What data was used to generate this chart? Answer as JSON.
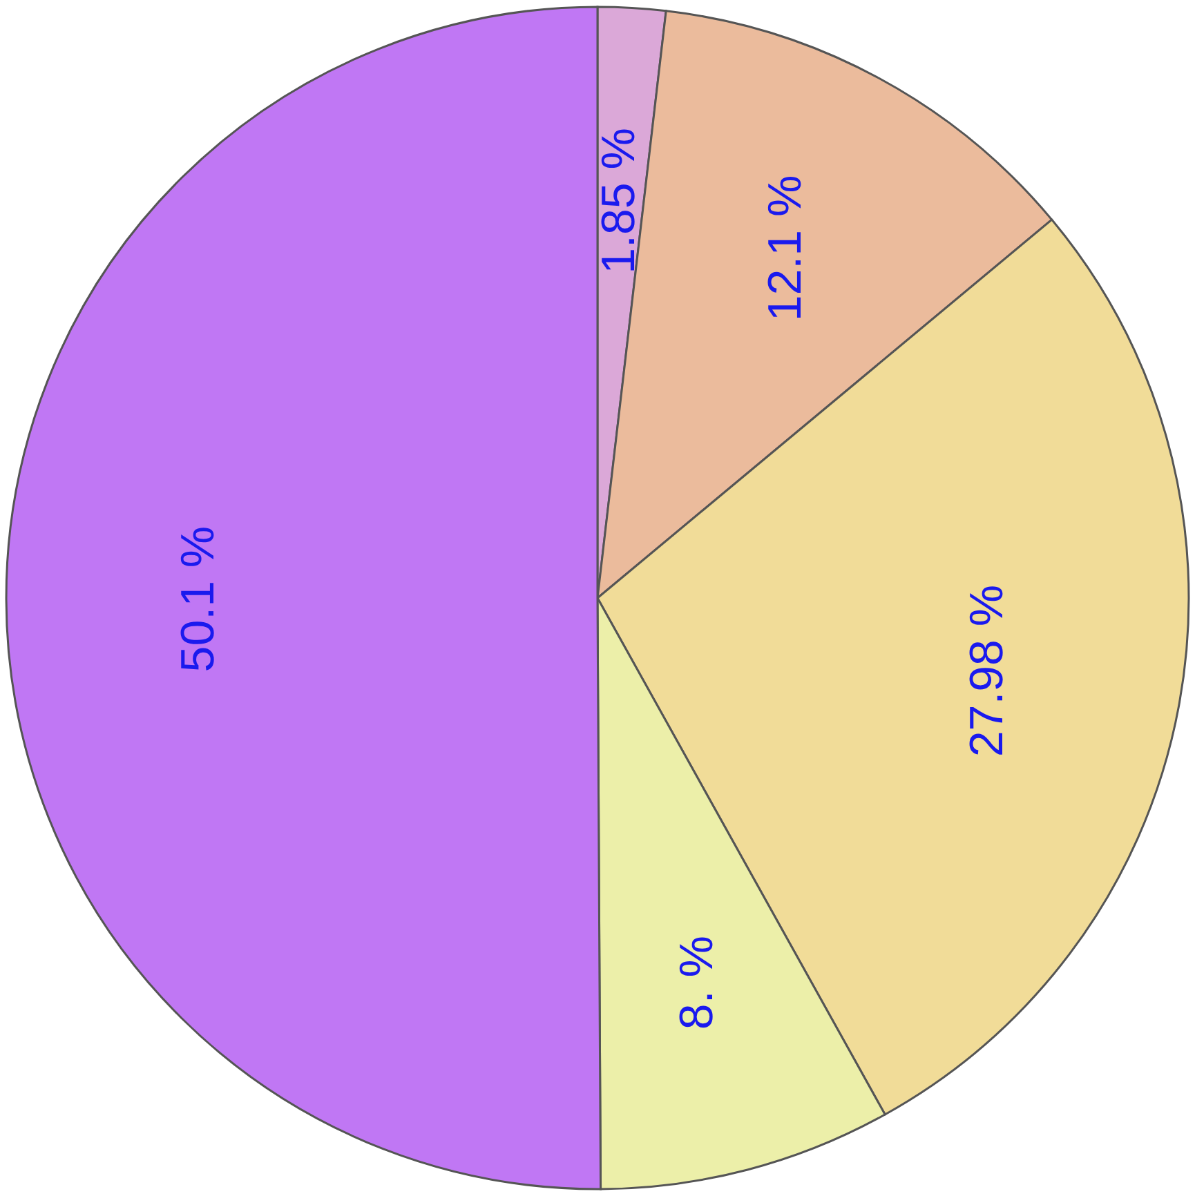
{
  "chart_data": {
    "type": "pie",
    "categories": [
      null,
      null,
      null,
      null,
      null
    ],
    "values": [
      1.85,
      12.1,
      27.98,
      8,
      50.1
    ],
    "colors": [
      "#dba8d8",
      "#ebbb9c",
      "#f1dc98",
      "#ecefa9",
      "#c077f4"
    ],
    "value_labels": [
      "1.85 %",
      "12.1 %",
      "27.98 %",
      "8. %",
      "50.1 %"
    ]
  }
}
